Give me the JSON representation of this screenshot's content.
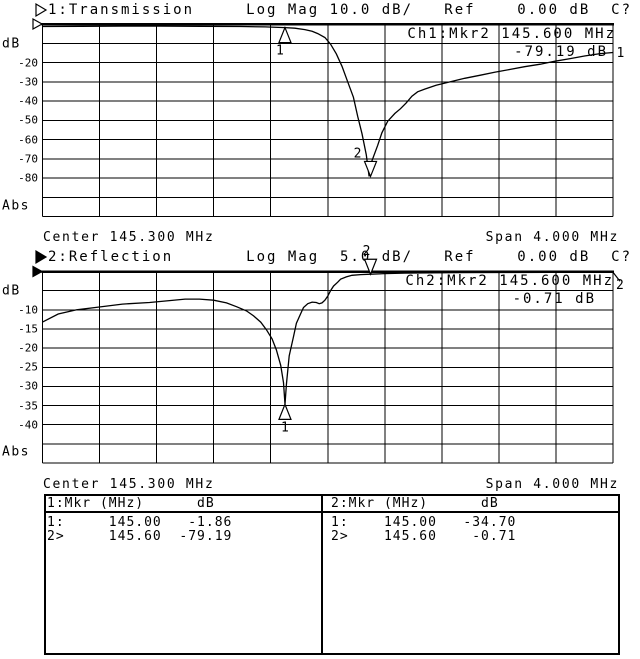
{
  "screen": {
    "background": "#ffffff",
    "foreground": "#000000"
  },
  "chart_data": [
    {
      "type": "line",
      "channel": "Ch1",
      "trace_name": "1:Transmission",
      "format": "Log Mag",
      "scale_db_per_div": 10.0,
      "ref_db": 0.0,
      "status": "C?",
      "active": false,
      "title": "1:Transmission     Log Mag 10.0 dB/   Ref    0.00 dB  C?",
      "unit": "dB",
      "unit_at": -10.4,
      "abs": "Abs",
      "abs_at": -94.5,
      "ymax": 0,
      "ymin": -100,
      "yticks": [
        {
          "v": -20,
          "label": "-20"
        },
        {
          "v": -30,
          "label": "-30"
        },
        {
          "v": -40,
          "label": "-40"
        },
        {
          "v": -50,
          "label": "-50"
        },
        {
          "v": -60,
          "label": "-60"
        },
        {
          "v": -70,
          "label": "-70"
        },
        {
          "v": -80,
          "label": "-80"
        }
      ],
      "x_start_mhz": 143.3,
      "x_stop_mhz": 147.3,
      "x_divisions": 10,
      "center_mhz": 145.3,
      "span_mhz": 4.0,
      "center_label": "Center 145.300 MHz",
      "span_label": "Span 4.000 MHz",
      "readout": {
        "line1": "Ch1:Mkr2 145.600 MHz",
        "line2": "-79.19 dB"
      },
      "trace_number": "1",
      "trace_leader": false,
      "markers": [
        {
          "name": "1",
          "f_mhz": 145.0,
          "db": -1.86,
          "dir": "up",
          "ldx": -5
        },
        {
          "name": "2",
          "f_mhz": 145.6,
          "db": -79.19,
          "dir": "down",
          "ldx": -13
        }
      ],
      "series": {
        "x_mhz": [
          143.3,
          143.57,
          143.85,
          144.13,
          144.41,
          144.69,
          144.86,
          145.0,
          145.07,
          145.14,
          145.19,
          145.23,
          145.28,
          145.32,
          145.36,
          145.4,
          145.44,
          145.48,
          145.51,
          145.54,
          145.57,
          145.59,
          145.61,
          145.65,
          145.68,
          145.72,
          145.77,
          145.81,
          145.85,
          145.89,
          145.93,
          145.98,
          146.06,
          146.16,
          146.26,
          146.37,
          146.47,
          146.58,
          146.68,
          146.79,
          146.89,
          147.0,
          147.1,
          147.21,
          147.3
        ],
        "db": [
          -1.3,
          -1.2,
          -1.1,
          -1.1,
          -1.2,
          -1.3,
          -1.5,
          -1.86,
          -2.2,
          -2.9,
          -3.8,
          -5.0,
          -7.0,
          -10.5,
          -15.5,
          -22,
          -30,
          -38,
          -48,
          -57,
          -68,
          -79.19,
          -71,
          -63,
          -56.5,
          -50.5,
          -46.5,
          -44,
          -41,
          -37.5,
          -35.2,
          -33.8,
          -31.8,
          -30,
          -28.2,
          -26.6,
          -25.1,
          -23.6,
          -22.2,
          -20.9,
          -19.4,
          -18,
          -16.6,
          -15.4,
          -14.8
        ]
      }
    },
    {
      "type": "line",
      "channel": "Ch2",
      "trace_name": "2:Reflection",
      "format": "Log Mag",
      "scale_db_per_div": 5.0,
      "ref_db": 0.0,
      "status": "C?",
      "active": true,
      "title": "2:Reflection       Log Mag  5.0 dB/   Ref    0.00 dB  C?",
      "unit": "dB",
      "unit_at": -5.1,
      "abs": "Abs",
      "abs_at": -47.2,
      "ymax": 0,
      "ymin": -50,
      "yticks": [
        {
          "v": -10,
          "label": "-10"
        },
        {
          "v": -15,
          "label": "-15"
        },
        {
          "v": -20,
          "label": "-20"
        },
        {
          "v": -25,
          "label": "-25"
        },
        {
          "v": -30,
          "label": "-30"
        },
        {
          "v": -35,
          "label": "-35"
        },
        {
          "v": -40,
          "label": "-40"
        }
      ],
      "x_start_mhz": 143.3,
      "x_stop_mhz": 147.3,
      "x_divisions": 10,
      "center_mhz": 145.3,
      "span_mhz": 4.0,
      "center_label": "Center 145.300 MHz",
      "span_label": "Span 4.000 MHz",
      "readout": {
        "line1": "Ch2:Mkr2 145.600 MHz",
        "line2": "-0.71 dB"
      },
      "trace_number": "2",
      "trace_leader": true,
      "markers": [
        {
          "name": "1",
          "f_mhz": 145.0,
          "db": -34.7,
          "dir": "up",
          "ldx": 0
        },
        {
          "name": "2",
          "f_mhz": 145.6,
          "db": -0.71,
          "dir": "down",
          "ldx": -4
        }
      ],
      "series": {
        "x_mhz": [
          143.3,
          143.41,
          143.54,
          143.67,
          143.86,
          144.05,
          144.19,
          144.3,
          144.4,
          144.5,
          144.59,
          144.66,
          144.73,
          144.78,
          144.83,
          144.87,
          144.91,
          144.94,
          144.97,
          144.99,
          145.0,
          145.01,
          145.03,
          145.06,
          145.08,
          145.11,
          145.13,
          145.16,
          145.19,
          145.22,
          145.24,
          145.26,
          145.28,
          145.3,
          145.32,
          145.34,
          145.37,
          145.39,
          145.43,
          145.47,
          145.53,
          145.6,
          145.7,
          145.84,
          146.02,
          146.23,
          146.51,
          146.86,
          147.3
        ],
        "db": [
          -13.2,
          -11.1,
          -10.0,
          -9.4,
          -8.5,
          -8.1,
          -7.6,
          -7.2,
          -7.2,
          -7.5,
          -8.2,
          -9.2,
          -10.3,
          -11.6,
          -13.2,
          -15.2,
          -17.6,
          -20.5,
          -24.5,
          -29,
          -34.7,
          -29.5,
          -22,
          -17,
          -13.5,
          -11,
          -9.4,
          -8.4,
          -8.0,
          -8.1,
          -8.4,
          -8.2,
          -7.5,
          -6.4,
          -5.0,
          -3.8,
          -2.8,
          -2.0,
          -1.4,
          -1.0,
          -0.8,
          -0.71,
          -0.55,
          -0.42,
          -0.33,
          -0.28,
          -0.25,
          -0.22,
          -0.2
        ]
      }
    }
  ],
  "marker_table": {
    "columns": [
      {
        "header": "1:Mkr (MHz)      dB",
        "rows": [
          "1:     145.00   -1.86",
          "2>     145.60  -79.19"
        ]
      },
      {
        "header": "2:Mkr (MHz)      dB",
        "rows": [
          "1:    145.00   -34.70",
          "2>    145.60    -0.71"
        ]
      }
    ]
  }
}
